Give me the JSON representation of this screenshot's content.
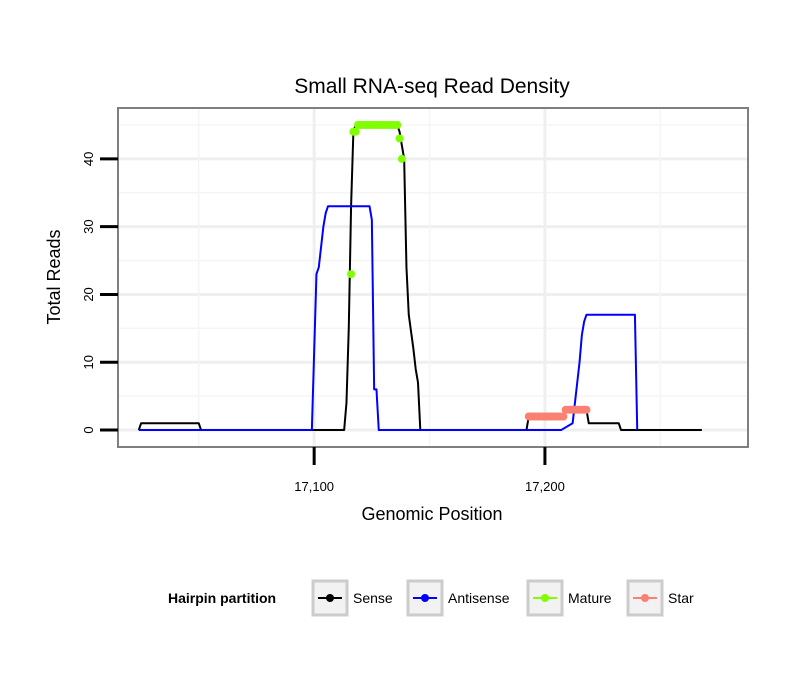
{
  "chart_data": {
    "type": "line",
    "title": "Small RNA-seq Read Density",
    "xlabel": "Genomic Position",
    "ylabel": "Total Reads",
    "xlim": [
      17015,
      17288
    ],
    "ylim": [
      -2.5,
      47.5
    ],
    "x_ticks": [
      17100,
      17200
    ],
    "x_tick_labels": [
      "17,100",
      "17,200"
    ],
    "y_ticks": [
      0,
      10,
      20,
      30,
      40
    ],
    "y_tick_labels": [
      "0",
      "10",
      "20",
      "30",
      "40"
    ],
    "grid": true,
    "legend": {
      "title": "Hairpin partition",
      "position": "bottom",
      "entries": [
        {
          "name": "Sense",
          "color": "#000000"
        },
        {
          "name": "Antisense",
          "color": "#0000ff"
        },
        {
          "name": "Mature",
          "color": "#7fff00"
        },
        {
          "name": "Star",
          "color": "#fa8072"
        }
      ]
    },
    "series": [
      {
        "name": "Sense",
        "color": "#000000",
        "style": "line",
        "points": [
          [
            17024,
            0
          ],
          [
            17025,
            1
          ],
          [
            17050,
            1
          ],
          [
            17051,
            0
          ],
          [
            17113,
            0
          ],
          [
            17114,
            4
          ],
          [
            17115,
            15
          ],
          [
            17116,
            33
          ],
          [
            17117,
            44
          ],
          [
            17118,
            45
          ],
          [
            17136,
            45
          ],
          [
            17137,
            44
          ],
          [
            17138,
            42
          ],
          [
            17139,
            40
          ],
          [
            17140,
            24
          ],
          [
            17141,
            17
          ],
          [
            17143,
            12
          ],
          [
            17144,
            9
          ],
          [
            17145,
            7
          ],
          [
            17146,
            0
          ],
          [
            17192,
            0
          ],
          [
            17193,
            2
          ],
          [
            17208,
            2
          ],
          [
            17209,
            3
          ],
          [
            17218,
            3
          ],
          [
            17219,
            1
          ],
          [
            17232,
            1
          ],
          [
            17233,
            0
          ],
          [
            17268,
            0
          ]
        ]
      },
      {
        "name": "Antisense",
        "color": "#0000ff",
        "style": "line",
        "points": [
          [
            17024,
            0
          ],
          [
            17099,
            0
          ],
          [
            17101,
            23
          ],
          [
            17102,
            24
          ],
          [
            17104,
            30
          ],
          [
            17105,
            32
          ],
          [
            17106,
            33
          ],
          [
            17124,
            33
          ],
          [
            17125,
            31
          ],
          [
            17126,
            6
          ],
          [
            17127,
            6
          ],
          [
            17128,
            0
          ],
          [
            17207,
            0
          ],
          [
            17212,
            1
          ],
          [
            17214,
            7
          ],
          [
            17215,
            10
          ],
          [
            17216,
            14
          ],
          [
            17217,
            16
          ],
          [
            17218,
            17
          ],
          [
            17239,
            17
          ],
          [
            17240,
            0
          ]
        ]
      },
      {
        "name": "Mature",
        "color": "#7fff00",
        "style": "points",
        "points": [
          [
            17116,
            23
          ],
          [
            17117,
            44
          ],
          [
            17118,
            44
          ],
          [
            17119,
            45
          ],
          [
            17120,
            45
          ],
          [
            17121,
            45
          ],
          [
            17122,
            45
          ],
          [
            17123,
            45
          ],
          [
            17124,
            45
          ],
          [
            17125,
            45
          ],
          [
            17126,
            45
          ],
          [
            17127,
            45
          ],
          [
            17128,
            45
          ],
          [
            17129,
            45
          ],
          [
            17130,
            45
          ],
          [
            17131,
            45
          ],
          [
            17132,
            45
          ],
          [
            17133,
            45
          ],
          [
            17134,
            45
          ],
          [
            17135,
            45
          ],
          [
            17136,
            45
          ],
          [
            17137,
            43
          ],
          [
            17138,
            40
          ]
        ]
      },
      {
        "name": "Star",
        "color": "#fa8072",
        "style": "points",
        "points": [
          [
            17193,
            2
          ],
          [
            17194,
            2
          ],
          [
            17195,
            2
          ],
          [
            17196,
            2
          ],
          [
            17197,
            2
          ],
          [
            17198,
            2
          ],
          [
            17199,
            2
          ],
          [
            17200,
            2
          ],
          [
            17201,
            2
          ],
          [
            17202,
            2
          ],
          [
            17203,
            2
          ],
          [
            17204,
            2
          ],
          [
            17205,
            2
          ],
          [
            17206,
            2
          ],
          [
            17207,
            2
          ],
          [
            17208,
            2
          ],
          [
            17209,
            3
          ],
          [
            17210,
            3
          ],
          [
            17211,
            3
          ],
          [
            17212,
            3
          ],
          [
            17213,
            3
          ],
          [
            17214,
            3
          ],
          [
            17215,
            3
          ],
          [
            17216,
            3
          ],
          [
            17217,
            3
          ],
          [
            17218,
            3
          ]
        ]
      }
    ]
  }
}
